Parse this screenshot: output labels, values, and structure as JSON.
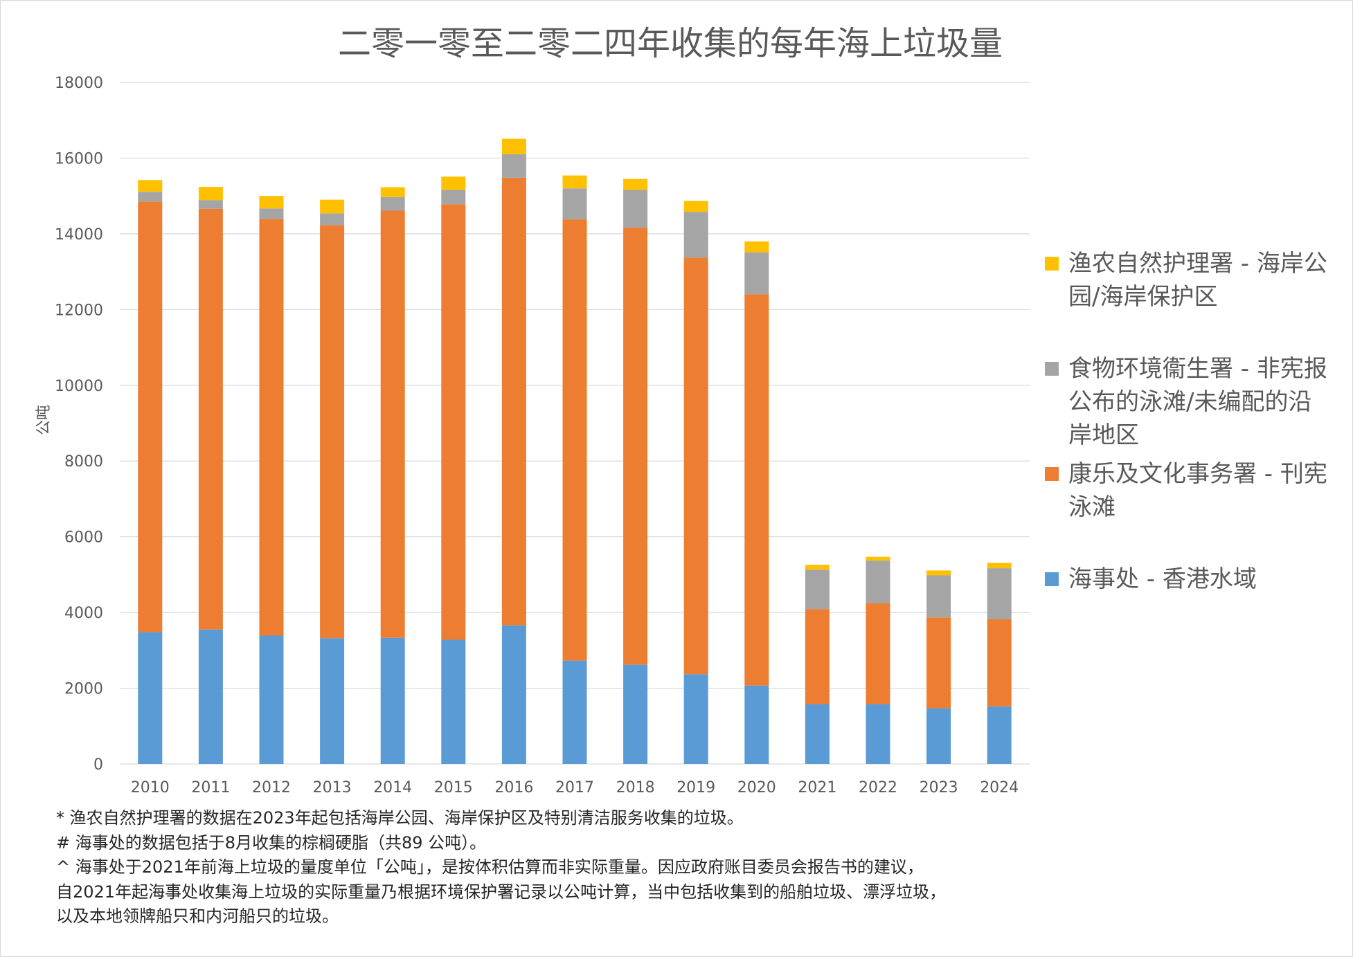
{
  "chart_data": {
    "type": "bar",
    "stacked": true,
    "title": "二零一零至二零二四年收集的每年海上垃圾量",
    "xlabel": "",
    "ylabel": "公吨",
    "ylim": [
      0,
      18000
    ],
    "yticks": [
      "0",
      "2000",
      "4000",
      "6000",
      "8000",
      "10000",
      "12000",
      "14000",
      "16000",
      "18000"
    ],
    "grid": true,
    "legend_position": "right",
    "categories": [
      "2010",
      "2011",
      "2012",
      "2013",
      "2014",
      "2015",
      "2016",
      "2017",
      "2018",
      "2019",
      "2020",
      "2021",
      "2022",
      "2023",
      "2024"
    ],
    "series": [
      {
        "name": "海事处 - 香港水域",
        "color": "#5B9BD5",
        "values": [
          3480,
          3550,
          3390,
          3320,
          3330,
          3280,
          3660,
          2730,
          2620,
          2370,
          2070,
          1580,
          1580,
          1470,
          1520
        ]
      },
      {
        "name": "康乐及文化事务署 - 刊宪泳滩",
        "color": "#ED7D31",
        "values": [
          11370,
          11110,
          11000,
          10910,
          11280,
          11500,
          11820,
          11650,
          11540,
          11000,
          10330,
          2510,
          2660,
          2400,
          2300
        ]
      },
      {
        "name": "食物环境衞生署 - 非宪报公布的泳滩/未编配的沿岸地区",
        "color": "#A5A5A5",
        "values": [
          260,
          230,
          280,
          310,
          360,
          380,
          620,
          820,
          1000,
          1210,
          1110,
          1040,
          1130,
          1110,
          1350
        ]
      },
      {
        "name": "渔农自然护理署 - 海岸公园/海岸保护区",
        "color": "#FFC000",
        "values": [
          310,
          350,
          330,
          360,
          260,
          350,
          410,
          340,
          290,
          290,
          290,
          130,
          100,
          130,
          140
        ]
      }
    ]
  },
  "legend_order": [
    3,
    2,
    1,
    0
  ],
  "footnotes": [
    "* 渔农自然护理署的数据在2023年起包括海岸公园、海岸保护区及特别清洁服务收集的垃圾。",
    "# 海事处的数据包括于8月收集的棕榈硬脂（共89 公吨）。",
    "^ 海事处于2021年前海上垃圾的量度单位「公吨」，是按体积估算而非实际重量。因应政府账目委员会报告书的建议，",
    "自2021年起海事处收集海上垃圾的实际重量乃根据环境保护署记录以公吨计算，当中包括收集到的船舶垃圾、漂浮垃圾，",
    "以及本地领牌船只和内河船只的垃圾。"
  ]
}
